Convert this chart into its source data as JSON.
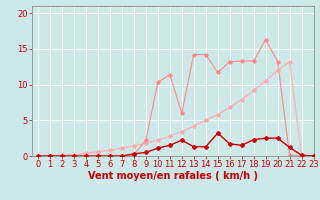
{
  "xlabel": "Vent moyen/en rafales ( km/h )",
  "xlim": [
    -0.5,
    23
  ],
  "ylim": [
    0,
    21
  ],
  "xticks": [
    0,
    1,
    2,
    3,
    4,
    5,
    6,
    7,
    8,
    9,
    10,
    11,
    12,
    13,
    14,
    15,
    16,
    17,
    18,
    19,
    20,
    21,
    22,
    23
  ],
  "yticks": [
    0,
    5,
    10,
    15,
    20
  ],
  "bg_color": "#cce8e8",
  "grid_color": "#ffffff",
  "line1_x": [
    0,
    1,
    2,
    3,
    4,
    5,
    6,
    7,
    8,
    9,
    10,
    11,
    12,
    13,
    14,
    15,
    16,
    17,
    18,
    19,
    20,
    21,
    22,
    23
  ],
  "line1_y": [
    0,
    0,
    0,
    0,
    0,
    0,
    0,
    0,
    0.2,
    2.2,
    10.3,
    11.4,
    6.0,
    14.2,
    14.2,
    11.7,
    13.2,
    13.3,
    13.3,
    16.3,
    13.2,
    0.1,
    0,
    0
  ],
  "line2_x": [
    0,
    1,
    2,
    3,
    4,
    5,
    6,
    7,
    8,
    9,
    10,
    11,
    12,
    13,
    14,
    15,
    16,
    17,
    18,
    19,
    20,
    21,
    22,
    23
  ],
  "line2_y": [
    0,
    0.0,
    0.1,
    0.2,
    0.4,
    0.6,
    0.8,
    1.1,
    1.4,
    1.8,
    2.2,
    2.8,
    3.4,
    4.2,
    5.0,
    5.8,
    6.8,
    7.9,
    9.2,
    10.5,
    12.0,
    13.2,
    0,
    0
  ],
  "line3_x": [
    0,
    1,
    2,
    3,
    4,
    5,
    6,
    7,
    8,
    9,
    10,
    11,
    12,
    13,
    14,
    15,
    16,
    17,
    18,
    19,
    20,
    21,
    22,
    23
  ],
  "line3_y": [
    0,
    0,
    0,
    0,
    0,
    0,
    0,
    0,
    0.3,
    0.5,
    1.1,
    1.5,
    2.2,
    1.3,
    1.3,
    3.2,
    1.7,
    1.5,
    2.3,
    2.5,
    2.5,
    1.2,
    0.1,
    0
  ],
  "line1_color": "#ff8888",
  "line2_color": "#ffaaaa",
  "line3_color": "#cc0000",
  "xlabel_color": "#cc0000",
  "tick_color": "#cc0000",
  "xlabel_fontsize": 7.0,
  "tick_fontsize": 6.0
}
